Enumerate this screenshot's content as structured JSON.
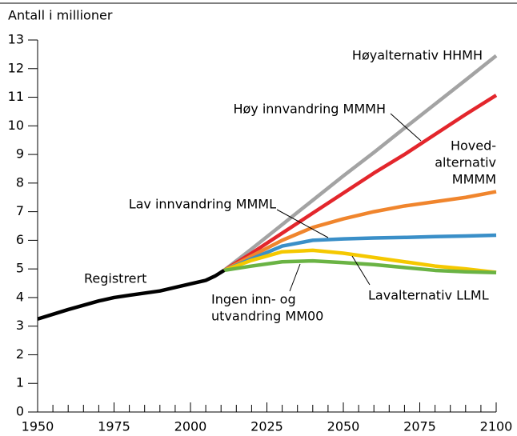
{
  "chart_data": {
    "type": "line",
    "ylabel": "Antall i millioner",
    "x": [
      1950,
      1960,
      1970,
      1975,
      1980,
      1990,
      2000,
      2005,
      2008,
      2011,
      2020,
      2030,
      2040,
      2050,
      2060,
      2070,
      2080,
      2090,
      2100
    ],
    "series": [
      {
        "label": [
          "Høyalternativ HHMH"
        ],
        "color": "#a3a3a3",
        "values": [
          null,
          null,
          null,
          null,
          null,
          null,
          null,
          null,
          null,
          4.95,
          5.7,
          6.55,
          7.4,
          8.25,
          9.07,
          9.92,
          10.76,
          11.6,
          12.45
        ]
      },
      {
        "label": [
          "Høy innvandring MMMH"
        ],
        "color": "#e3262c",
        "values": [
          null,
          null,
          null,
          null,
          null,
          null,
          null,
          null,
          null,
          4.95,
          5.55,
          6.25,
          6.95,
          7.65,
          8.35,
          9.0,
          9.7,
          10.4,
          11.07
        ]
      },
      {
        "label": [
          "Hoved-",
          "alternativ",
          "MMMM"
        ],
        "color": "#f0852d",
        "values": [
          null,
          null,
          null,
          null,
          null,
          null,
          null,
          null,
          null,
          4.95,
          5.45,
          6.0,
          6.45,
          6.75,
          7.0,
          7.2,
          7.35,
          7.5,
          7.7
        ]
      },
      {
        "label": [
          "Lav innvandring MMML"
        ],
        "color": "#3a8fc8",
        "values": [
          null,
          null,
          null,
          null,
          null,
          null,
          null,
          null,
          null,
          4.95,
          5.35,
          5.8,
          6.0,
          6.05,
          6.08,
          6.1,
          6.13,
          6.15,
          6.18
        ]
      },
      {
        "label": [
          "Lavalternativ LLML"
        ],
        "color": "#f5c800",
        "values": [
          null,
          null,
          null,
          null,
          null,
          null,
          null,
          null,
          null,
          4.95,
          5.3,
          5.6,
          5.65,
          5.55,
          5.4,
          5.25,
          5.1,
          5.0,
          4.88
        ]
      },
      {
        "label": [
          "Ingen inn- og",
          "utvandring MM00"
        ],
        "color": "#6ab344",
        "values": [
          null,
          null,
          null,
          null,
          null,
          null,
          null,
          null,
          null,
          4.95,
          5.1,
          5.25,
          5.28,
          5.22,
          5.15,
          5.05,
          4.95,
          4.9,
          4.87
        ]
      },
      {
        "label": [
          "Registrert"
        ],
        "color": "#000000",
        "values": [
          3.25,
          3.58,
          3.88,
          4.0,
          4.08,
          4.23,
          4.48,
          4.6,
          4.75,
          4.95,
          null,
          null,
          null,
          null,
          null,
          null,
          null,
          null,
          null
        ]
      }
    ],
    "xlim": [
      1950,
      2100
    ],
    "ylim": [
      0,
      13
    ],
    "xticks": [
      1950,
      1975,
      2000,
      2025,
      2050,
      2075,
      2100
    ],
    "xminorticks": [
      1955,
      1960,
      1965,
      1970,
      1980,
      1985,
      1990,
      1995,
      2005,
      2010,
      2015,
      2020,
      2030,
      2035,
      2040,
      2045,
      2055,
      2060,
      2065,
      2070,
      2080,
      2085,
      2090,
      2095
    ],
    "yticks": [
      0,
      1,
      2,
      3,
      4,
      5,
      6,
      7,
      8,
      9,
      10,
      11,
      12,
      13
    ]
  }
}
